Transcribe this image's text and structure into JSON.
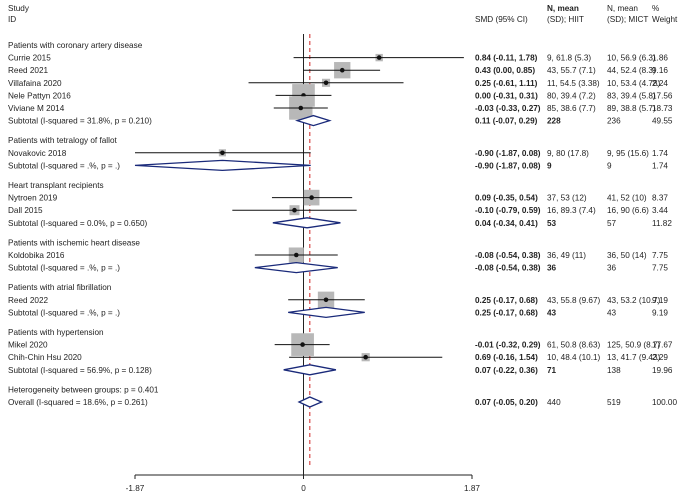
{
  "chart_data": {
    "type": "forest",
    "header": {
      "study_line1": "Study",
      "study_line2": "ID",
      "smd": "SMD (95% CI)",
      "hiit_line1": "N, mean",
      "hiit_line2": "(SD); HIIT",
      "mict_line1": "N, mean",
      "mict_line2": "(SD); MICT",
      "weight_line1": "%",
      "weight_line2": "Weight"
    },
    "x_axis": {
      "min": -1.87,
      "max": 1.87,
      "ticks": [
        "-1.87",
        "0",
        "1.87"
      ],
      "null_line": 0
    },
    "overall_effect": 0.07,
    "groups": [
      {
        "title": "Patients with coronary artery disease",
        "studies": [
          {
            "name": "Currie 2015",
            "est": 0.84,
            "lo": -0.11,
            "hi": 1.78,
            "ci_text": "0.84 (-0.11, 1.78)",
            "hiit": "9, 61.8 (5.3)",
            "mict": "10, 56.9 (6.3)",
            "weight": "1.86",
            "w": 1.86
          },
          {
            "name": "Reed 2021",
            "est": 0.43,
            "lo": 0.0,
            "hi": 0.85,
            "ci_text": "0.43 (0.00, 0.85)",
            "hiit": "43, 55.7 (7.1)",
            "mict": "44, 52.4 (8.3)",
            "weight": "9.16",
            "w": 9.16
          },
          {
            "name": "Villafaina 2020",
            "est": 0.25,
            "lo": -0.61,
            "hi": 1.11,
            "ci_text": "0.25 (-0.61, 1.11)",
            "hiit": "11, 54.5 (3.38)",
            "mict": "10, 53.4 (4.78)",
            "weight": "2.24",
            "w": 2.24
          },
          {
            "name": "Nele Pattyn 2016",
            "est": 0.0,
            "lo": -0.31,
            "hi": 0.31,
            "ci_text": "0.00 (-0.31, 0.31)",
            "hiit": "80, 39.4 (7.2)",
            "mict": "83, 39.4 (5.8)",
            "weight": "17.56",
            "w": 17.56
          },
          {
            "name": "Viviane M 2014",
            "est": -0.03,
            "lo": -0.33,
            "hi": 0.27,
            "ci_text": "-0.03 (-0.33, 0.27)",
            "hiit": "85, 38.6 (7.7)",
            "mict": "89, 38.8 (5.7)",
            "weight": "18.73",
            "w": 18.73
          }
        ],
        "subtotal": {
          "label": "Subtotal  (I-squared = 31.8%, p = 0.210)",
          "est": 0.11,
          "lo": -0.07,
          "hi": 0.29,
          "ci_text": "0.11 (-0.07, 0.29)",
          "hiit": "228",
          "mict": "236",
          "weight": "49.55"
        }
      },
      {
        "title": "Patients with tetralogy of fallot",
        "studies": [
          {
            "name": "Novakovic 2018",
            "est": -0.9,
            "lo": -1.87,
            "hi": 0.08,
            "ci_text": "-0.90 (-1.87, 0.08)",
            "hiit": "9, 80 (17.8)",
            "mict": "9, 95 (15.6)",
            "weight": "1.74",
            "w": 1.74
          }
        ],
        "subtotal": {
          "label": "Subtotal  (I-squared = .%, p = .)",
          "est": -0.9,
          "lo": -1.87,
          "hi": 0.08,
          "ci_text": "-0.90 (-1.87, 0.08)",
          "hiit": "9",
          "mict": "9",
          "weight": "1.74"
        }
      },
      {
        "title": "Heart transplant recipients",
        "studies": [
          {
            "name": "Nytroen 2019",
            "est": 0.09,
            "lo": -0.35,
            "hi": 0.54,
            "ci_text": "0.09 (-0.35, 0.54)",
            "hiit": "37, 53 (12)",
            "mict": "41, 52 (10)",
            "weight": "8.37",
            "w": 8.37
          },
          {
            "name": "Dall 2015",
            "est": -0.1,
            "lo": -0.79,
            "hi": 0.59,
            "ci_text": "-0.10 (-0.79, 0.59)",
            "hiit": "16, 89.3 (7.4)",
            "mict": "16, 90 (6.6)",
            "weight": "3.44",
            "w": 3.44
          }
        ],
        "subtotal": {
          "label": "Subtotal  (I-squared = 0.0%, p = 0.650)",
          "est": 0.04,
          "lo": -0.34,
          "hi": 0.41,
          "ci_text": "0.04 (-0.34, 0.41)",
          "hiit": "53",
          "mict": "57",
          "weight": "11.82"
        }
      },
      {
        "title": "Patients with ischemic heart disease",
        "studies": [
          {
            "name": "Koldobika 2016",
            "est": -0.08,
            "lo": -0.54,
            "hi": 0.38,
            "ci_text": "-0.08 (-0.54, 0.38)",
            "hiit": "36, 49 (11)",
            "mict": "36, 50 (14)",
            "weight": "7.75",
            "w": 7.75
          }
        ],
        "subtotal": {
          "label": "Subtotal  (I-squared = .%, p = .)",
          "est": -0.08,
          "lo": -0.54,
          "hi": 0.38,
          "ci_text": "-0.08 (-0.54, 0.38)",
          "hiit": "36",
          "mict": "36",
          "weight": "7.75"
        }
      },
      {
        "title": "Patients with atrial fibrillation",
        "studies": [
          {
            "name": "Reed 2022",
            "est": 0.25,
            "lo": -0.17,
            "hi": 0.68,
            "ci_text": "0.25 (-0.17, 0.68)",
            "hiit": "43, 55.8 (9.67)",
            "mict": "43, 53.2 (10.7)",
            "weight": "9.19",
            "w": 9.19
          }
        ],
        "subtotal": {
          "label": "Subtotal  (I-squared = .%, p = .)",
          "est": 0.25,
          "lo": -0.17,
          "hi": 0.68,
          "ci_text": "0.25 (-0.17, 0.68)",
          "hiit": "43",
          "mict": "43",
          "weight": "9.19"
        }
      },
      {
        "title": "Patients with hypertension",
        "studies": [
          {
            "name": "Mikel 2020",
            "est": -0.01,
            "lo": -0.32,
            "hi": 0.29,
            "ci_text": "-0.01 (-0.32, 0.29)",
            "hiit": "61, 50.8 (8.63)",
            "mict": "125, 50.9 (8.7)",
            "weight": "17.67",
            "w": 17.67
          },
          {
            "name": "Chih-Chin Hsu 2020",
            "est": 0.69,
            "lo": -0.16,
            "hi": 1.54,
            "ci_text": "0.69 (-0.16, 1.54)",
            "hiit": "10, 48.4 (10.1)",
            "mict": "13, 41.7 (9.43)",
            "weight": "2.29",
            "w": 2.29
          }
        ],
        "subtotal": {
          "label": "Subtotal  (I-squared = 56.9%, p = 0.128)",
          "est": 0.07,
          "lo": -0.22,
          "hi": 0.36,
          "ci_text": "0.07 (-0.22, 0.36)",
          "hiit": "71",
          "mict": "138",
          "weight": "19.96"
        }
      }
    ],
    "heterogeneity": "Heterogeneity between groups: p = 0.401",
    "overall": {
      "label": "Overall  (I-squared = 18.6%, p = 0.261)",
      "est": 0.07,
      "lo": -0.05,
      "hi": 0.2,
      "ci_text": "0.07 (-0.05, 0.20)",
      "hiit": "440",
      "mict": "519",
      "weight": "100.00"
    }
  }
}
